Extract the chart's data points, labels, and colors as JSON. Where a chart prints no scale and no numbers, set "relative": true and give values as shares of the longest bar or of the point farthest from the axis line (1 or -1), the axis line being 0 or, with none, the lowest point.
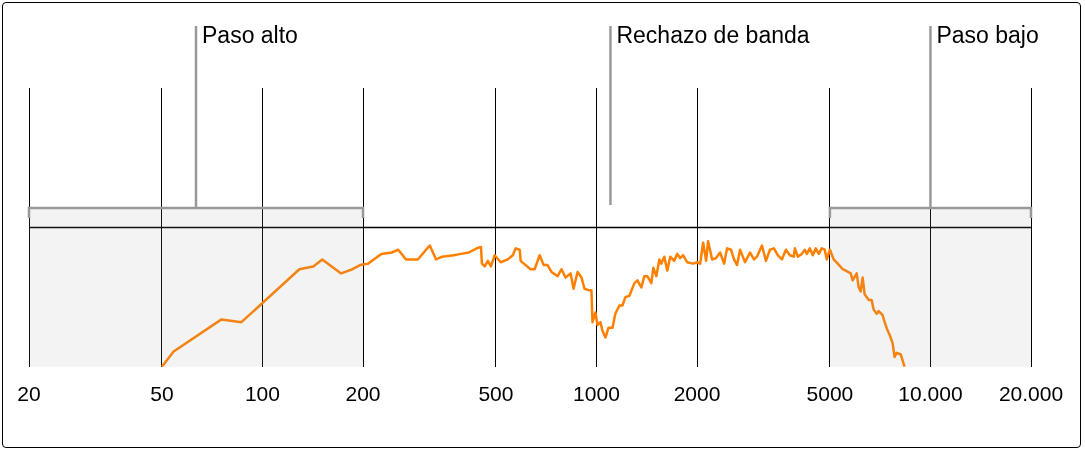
{
  "chart_data": {
    "type": "line",
    "relative": true,
    "log": "x",
    "grid": "x",
    "legend": false,
    "marker": "none",
    "line_style": "solid",
    "xlim": [
      20,
      20000
    ],
    "xticks": [
      20,
      50,
      100,
      200,
      500,
      1000,
      2000,
      5000,
      {
        "value": 10000,
        "label": "10.000"
      },
      {
        "value": 20000,
        "label": "20.000"
      }
    ],
    "ref_lines": [
      {
        "axis": "y",
        "value": 0,
        "color": "#000000"
      }
    ],
    "bands": [
      {
        "axis": "x",
        "from": 20,
        "to": 200,
        "label": "Paso alto",
        "color": "#999999"
      },
      {
        "axis": "x",
        "from": 5000,
        "to": 20000,
        "label": "Paso bajo",
        "color": "#999999"
      }
    ],
    "annotations": [
      "Rechazo de banda"
    ],
    "series": [
      {
        "color": "#ff8000",
        "x": [
          50,
          54.2,
          75.4,
          86.5,
          129,
          142,
          151,
          172,
          186,
          196,
          207,
          227,
          244,
          255,
          269,
          292,
          309,
          317,
          331,
          345,
          374,
          393,
          415,
          438,
          451,
          454,
          463,
          473,
          483,
          496,
          517,
          542,
          562,
          573,
          589,
          593,
          606,
          635,
          653,
          676,
          695,
          714,
          734,
          765,
          786,
          808,
          837,
          854,
          878,
          902,
          921,
          947,
          966,
          973,
          993,
          1007,
          1028,
          1042,
          1064,
          1086,
          1117,
          1139,
          1171,
          1196,
          1221,
          1255,
          1299,
          1326,
          1363,
          1391,
          1420,
          1460,
          1480,
          1511,
          1543,
          1563,
          1596,
          1629,
          1663,
          1709,
          1745,
          1781,
          1818,
          1869,
          1948,
          2002,
          2044,
          2086,
          2130,
          2159,
          2220,
          2281,
          2345,
          2411,
          2460,
          2529,
          2582,
          2636,
          2691,
          2785,
          2882,
          2963,
          3024,
          3130,
          3217,
          3307,
          3399,
          3494,
          3591,
          3692,
          3794,
          3899,
          3926,
          4008,
          4120,
          4206,
          4264,
          4353,
          4444,
          4536,
          4631,
          4727,
          4826,
          4893,
          5000,
          5133,
          5277,
          5461,
          5576,
          5771,
          5851,
          6014,
          6098,
          6180,
          6266,
          6353,
          6530,
          6667,
          6761,
          6902,
          6997,
          7191,
          7291,
          7443,
          7546,
          7703,
          7809,
          7918,
          8138,
          8195,
          8365
        ],
        "values": [
          -1,
          -0.89,
          -0.66,
          -0.68,
          -0.3,
          -0.28,
          -0.23,
          -0.33,
          -0.3,
          -0.27,
          -0.26,
          -0.19,
          -0.18,
          -0.16,
          -0.23,
          -0.23,
          -0.16,
          -0.13,
          -0.23,
          -0.21,
          -0.2,
          -0.19,
          -0.18,
          -0.15,
          -0.14,
          -0.26,
          -0.28,
          -0.24,
          -0.28,
          -0.2,
          -0.25,
          -0.23,
          -0.2,
          -0.15,
          -0.16,
          -0.24,
          -0.26,
          -0.3,
          -0.3,
          -0.2,
          -0.27,
          -0.27,
          -0.32,
          -0.35,
          -0.3,
          -0.36,
          -0.33,
          -0.44,
          -0.32,
          -0.36,
          -0.44,
          -0.45,
          -0.45,
          -0.68,
          -0.61,
          -0.7,
          -0.68,
          -0.74,
          -0.79,
          -0.72,
          -0.72,
          -0.62,
          -0.56,
          -0.56,
          -0.5,
          -0.49,
          -0.4,
          -0.38,
          -0.43,
          -0.35,
          -0.35,
          -0.4,
          -0.29,
          -0.35,
          -0.23,
          -0.26,
          -0.21,
          -0.31,
          -0.21,
          -0.24,
          -0.19,
          -0.22,
          -0.2,
          -0.25,
          -0.26,
          -0.25,
          -0.26,
          -0.11,
          -0.24,
          -0.1,
          -0.23,
          -0.22,
          -0.18,
          -0.26,
          -0.15,
          -0.16,
          -0.23,
          -0.27,
          -0.16,
          -0.25,
          -0.18,
          -0.23,
          -0.21,
          -0.13,
          -0.24,
          -0.16,
          -0.15,
          -0.2,
          -0.23,
          -0.16,
          -0.2,
          -0.21,
          -0.15,
          -0.21,
          -0.19,
          -0.16,
          -0.19,
          -0.15,
          -0.2,
          -0.15,
          -0.19,
          -0.15,
          -0.16,
          -0.23,
          -0.16,
          -0.23,
          -0.26,
          -0.3,
          -0.31,
          -0.33,
          -0.38,
          -0.33,
          -0.43,
          -0.46,
          -0.36,
          -0.48,
          -0.52,
          -0.52,
          -0.59,
          -0.62,
          -0.6,
          -0.63,
          -0.68,
          -0.74,
          -0.77,
          -0.83,
          -0.93,
          -0.9,
          -0.91,
          -0.93,
          -1
        ]
      }
    ]
  }
}
